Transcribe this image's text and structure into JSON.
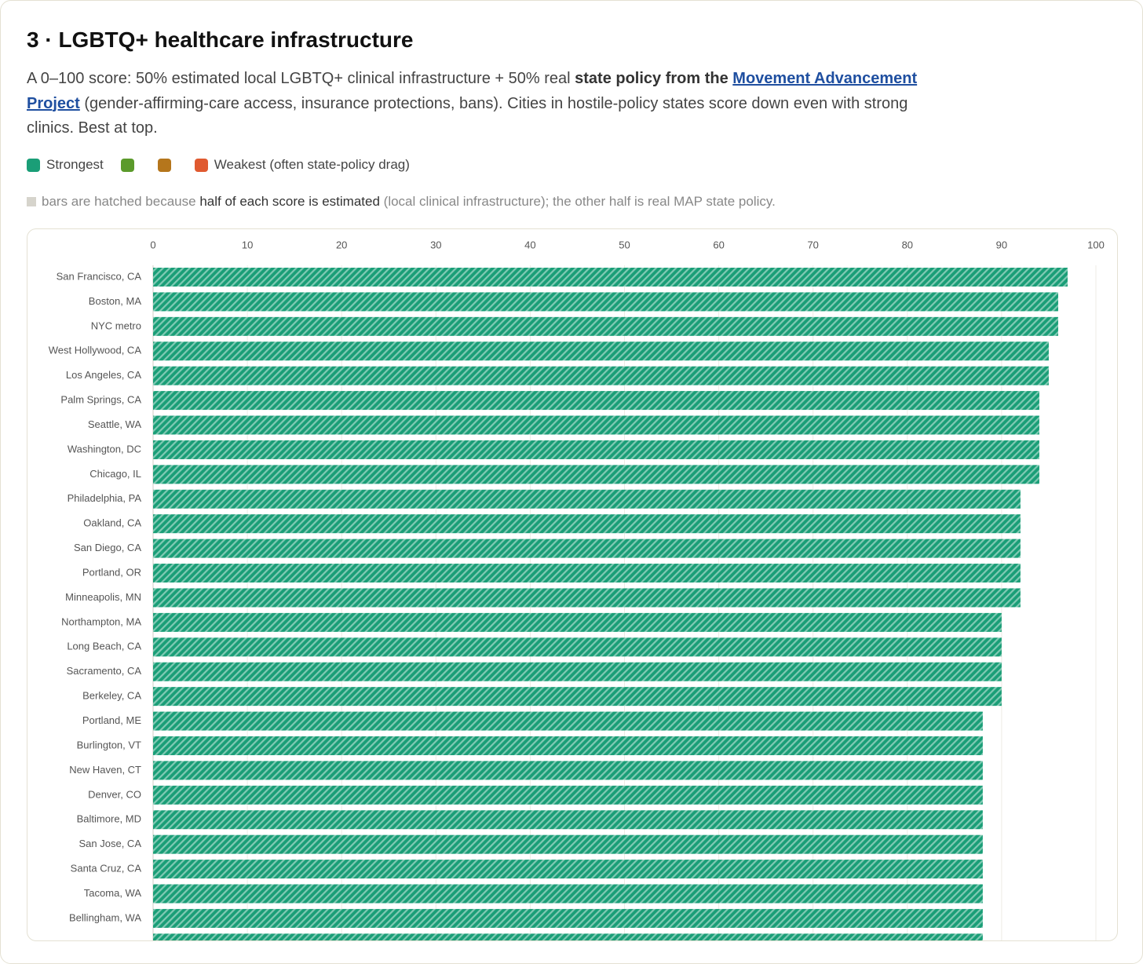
{
  "header": {
    "title": "3 · LGBTQ+ healthcare infrastructure",
    "description": [
      "A 0–100 score: 50% estimated local LGBTQ+ clinical infrastructure + 50% real ",
      "state policy from the ",
      "Movement Advancement Project",
      " (gender-affirming-care access, insurance protections, bans). Cities in hostile-policy states score down even with strong clinics. Best at top."
    ]
  },
  "legend": [
    {
      "color": "#1a9e77",
      "label": "Strongest"
    },
    {
      "color": "#5b9a2b"
    },
    {
      "color": "#b5761c"
    },
    {
      "color": "#e05a30",
      "label": "Weakest (often state-policy drag)"
    }
  ],
  "note": [
    "bars are hatched because ",
    "half of each score is estimated",
    " (local clinical infrastructure); the other half is real MAP state policy."
  ],
  "chart_data": {
    "type": "bar",
    "orientation": "horizontal",
    "color": "#1a9e77",
    "hatched": true,
    "grid": true,
    "categories": [
      "San Francisco, CA",
      "Boston, MA",
      "NYC metro",
      "West Hollywood, CA",
      "Los Angeles, CA",
      "Palm Springs, CA",
      "Seattle, WA",
      "Washington, DC",
      "Chicago, IL",
      "Philadelphia, PA",
      "Oakland, CA",
      "San Diego, CA",
      "Portland, OR",
      "Minneapolis, MN",
      "Northampton, MA",
      "Long Beach, CA",
      "Sacramento, CA",
      "Berkeley, CA",
      "Portland, ME",
      "Burlington, VT",
      "New Haven, CT",
      "Denver, CO",
      "Baltimore, MD",
      "San Jose, CA",
      "Santa Cruz, CA",
      "Tacoma, WA",
      "Bellingham, WA",
      null
    ],
    "values": [
      97,
      96,
      96,
      95,
      95,
      94,
      94,
      94,
      94,
      92,
      92,
      92,
      92,
      92,
      90,
      90,
      90,
      90,
      88,
      88,
      88,
      88,
      88,
      88,
      88,
      88,
      88,
      88
    ],
    "xlim": [
      0,
      100
    ],
    "xticks": [
      0,
      10,
      20,
      30,
      40,
      50,
      60,
      70,
      80,
      90,
      100
    ]
  }
}
